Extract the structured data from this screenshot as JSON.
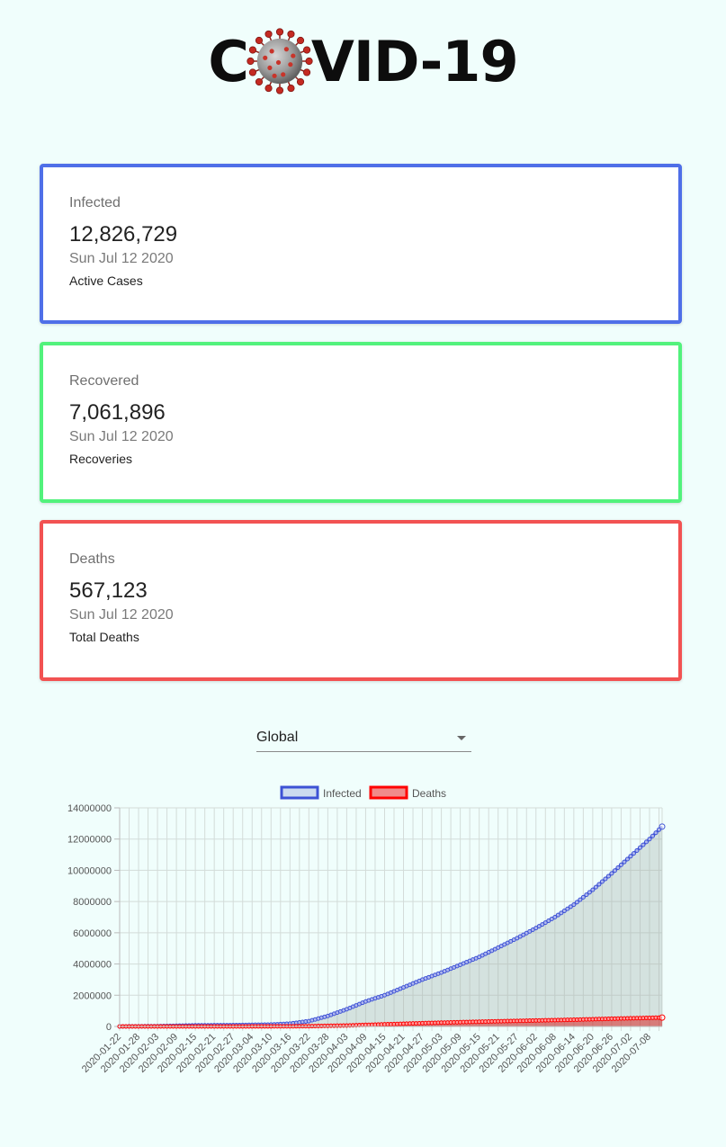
{
  "header": {
    "logo_pre": "C",
    "logo_post": "VID-19"
  },
  "cards": [
    {
      "title": "Infected",
      "value": "12,826,729",
      "date": "Sun Jul 12 2020",
      "subtitle": "Active Cases",
      "color": "#4f6fe8"
    },
    {
      "title": "Recovered",
      "value": "7,061,896",
      "date": "Sun Jul 12 2020",
      "subtitle": "Recoveries",
      "color": "#52f27c"
    },
    {
      "title": "Deaths",
      "value": "567,123",
      "date": "Sun Jul 12 2020",
      "subtitle": "Total Deaths",
      "color": "#f25252"
    }
  ],
  "country_select": {
    "value": "Global"
  },
  "chart_data": {
    "type": "line",
    "legend_position": "top",
    "grid": true,
    "ylim": [
      0,
      14000000
    ],
    "yticks": [
      0,
      2000000,
      4000000,
      6000000,
      8000000,
      10000000,
      12000000,
      14000000
    ],
    "x_tick_labels": [
      "2020-01-22",
      "2020-01-28",
      "2020-02-03",
      "2020-02-09",
      "2020-02-15",
      "2020-02-21",
      "2020-02-27",
      "2020-03-04",
      "2020-03-10",
      "2020-03-16",
      "2020-03-22",
      "2020-03-28",
      "2020-04-03",
      "2020-04-09",
      "2020-04-15",
      "2020-04-21",
      "2020-04-27",
      "2020-05-03",
      "2020-05-09",
      "2020-05-15",
      "2020-05-21",
      "2020-05-27",
      "2020-06-02",
      "2020-06-08",
      "2020-06-14",
      "2020-06-20",
      "2020-06-26",
      "2020-07-02",
      "2020-07-08"
    ],
    "x_range": [
      "2020-01-22",
      "2020-07-12"
    ],
    "series": [
      {
        "name": "Infected",
        "color": "#3d52d5",
        "fill": "rgba(160,175,170,0.35)",
        "x": [
          "2020-01-22",
          "2020-02-03",
          "2020-02-15",
          "2020-02-27",
          "2020-03-10",
          "2020-03-16",
          "2020-03-22",
          "2020-03-28",
          "2020-04-03",
          "2020-04-09",
          "2020-04-15",
          "2020-04-21",
          "2020-04-27",
          "2020-05-03",
          "2020-05-09",
          "2020-05-15",
          "2020-05-21",
          "2020-05-27",
          "2020-06-02",
          "2020-06-08",
          "2020-06-14",
          "2020-06-20",
          "2020-06-26",
          "2020-07-02",
          "2020-07-08",
          "2020-07-12"
        ],
        "values": [
          600,
          17000,
          70000,
          83000,
          120000,
          180000,
          340000,
          670000,
          1100000,
          1600000,
          2000000,
          2500000,
          3000000,
          3450000,
          3950000,
          4450000,
          5050000,
          5650000,
          6300000,
          7000000,
          7800000,
          8750000,
          9800000,
          10900000,
          12000000,
          12800000
        ]
      },
      {
        "name": "Deaths",
        "color": "#ff0000",
        "fill": "rgba(220,0,0,0.45)",
        "x": [
          "2020-01-22",
          "2020-02-15",
          "2020-03-10",
          "2020-03-22",
          "2020-04-03",
          "2020-04-15",
          "2020-04-27",
          "2020-05-09",
          "2020-05-21",
          "2020-06-02",
          "2020-06-14",
          "2020-06-26",
          "2020-07-08",
          "2020-07-12"
        ],
        "values": [
          17,
          1700,
          4300,
          15000,
          60000,
          135000,
          210000,
          275000,
          330000,
          380000,
          430000,
          495000,
          550000,
          567000
        ]
      }
    ]
  }
}
